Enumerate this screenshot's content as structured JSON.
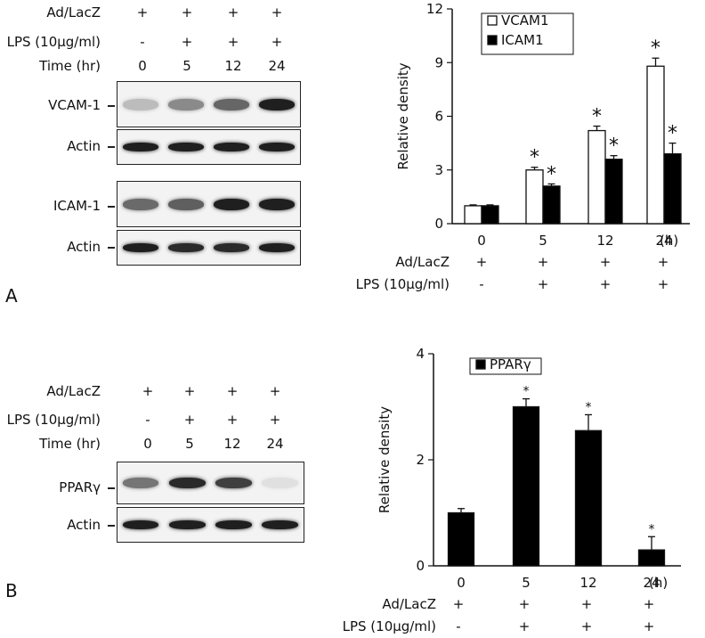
{
  "panel_a": {
    "letter": "A",
    "blot": {
      "conditions": [
        {
          "label": "Ad/LacZ",
          "values": [
            "+",
            "+",
            "+",
            "+"
          ]
        },
        {
          "label": "LPS (10μg/ml)",
          "values": [
            "-",
            "+",
            "+",
            "+"
          ]
        },
        {
          "label": "Time (hr)",
          "values": [
            "0",
            "5",
            "12",
            "24"
          ]
        }
      ],
      "rows": [
        {
          "label": "VCAM-1",
          "intensity": [
            0.22,
            0.45,
            0.62,
            0.95
          ]
        },
        {
          "label": "Actin",
          "intensity": [
            0.95,
            0.95,
            0.95,
            0.95
          ]
        },
        {
          "label": "ICAM-1",
          "intensity": [
            0.6,
            0.65,
            0.95,
            0.95
          ]
        },
        {
          "label": "Actin",
          "intensity": [
            0.95,
            0.9,
            0.9,
            0.95
          ]
        }
      ]
    },
    "chart_conditions": [
      {
        "label": "Ad/LacZ",
        "values": [
          "+",
          "+",
          "+",
          "+"
        ]
      },
      {
        "label": "LPS (10μg/ml)",
        "values": [
          "-",
          "+",
          "+",
          "+"
        ]
      }
    ]
  },
  "panel_b": {
    "letter": "B",
    "blot": {
      "conditions": [
        {
          "label": "Ad/LacZ",
          "values": [
            "+",
            "+",
            "+",
            "+"
          ]
        },
        {
          "label": "LPS (10μg/ml)",
          "values": [
            "-",
            "+",
            "+",
            "+"
          ]
        },
        {
          "label": "Time (hr)",
          "values": [
            "0",
            "5",
            "12",
            "24"
          ]
        }
      ],
      "rows": [
        {
          "label": "PPARγ",
          "intensity": [
            0.55,
            0.9,
            0.8,
            0.05
          ]
        },
        {
          "label": "Actin",
          "intensity": [
            0.95,
            0.95,
            0.95,
            0.95
          ]
        }
      ]
    },
    "chart_conditions": [
      {
        "label": "Ad/LacZ",
        "values": [
          "+",
          "+",
          "+",
          "+"
        ]
      },
      {
        "label": "LPS (10μg/ml)",
        "values": [
          "-",
          "+",
          "+",
          "+"
        ]
      }
    ]
  },
  "chart_data": [
    {
      "type": "bar",
      "categories": [
        "0",
        "5",
        "12",
        "24"
      ],
      "unit_label": "(h)",
      "ylabel": "Relative density",
      "ylim": [
        0,
        12
      ],
      "yticks": [
        0,
        3,
        6,
        9,
        12
      ],
      "legend_position": "top-right",
      "series": [
        {
          "name": "VCAM1",
          "fill": "#ffffff",
          "values": [
            1.0,
            3.0,
            5.2,
            8.8
          ],
          "errors": [
            0.05,
            0.15,
            0.25,
            0.45
          ],
          "significant": [
            false,
            true,
            true,
            true
          ]
        },
        {
          "name": "ICAM1",
          "fill": "#000000",
          "values": [
            1.0,
            2.1,
            3.6,
            3.9
          ],
          "errors": [
            0.05,
            0.12,
            0.2,
            0.6
          ],
          "significant": [
            false,
            true,
            true,
            true
          ]
        }
      ],
      "significance_marker": "*"
    },
    {
      "type": "bar",
      "categories": [
        "0",
        "5",
        "12",
        "24"
      ],
      "unit_label": "(h)",
      "ylabel": "Relative density",
      "ylim": [
        0,
        4
      ],
      "yticks": [
        0,
        2,
        4
      ],
      "legend_position": "top-left",
      "series": [
        {
          "name": "PPARγ",
          "fill": "#000000",
          "values": [
            1.0,
            3.0,
            2.55,
            0.3
          ],
          "errors": [
            0.08,
            0.15,
            0.3,
            0.25
          ],
          "significant": [
            false,
            true,
            true,
            true
          ]
        }
      ],
      "significance_marker": "*"
    }
  ]
}
